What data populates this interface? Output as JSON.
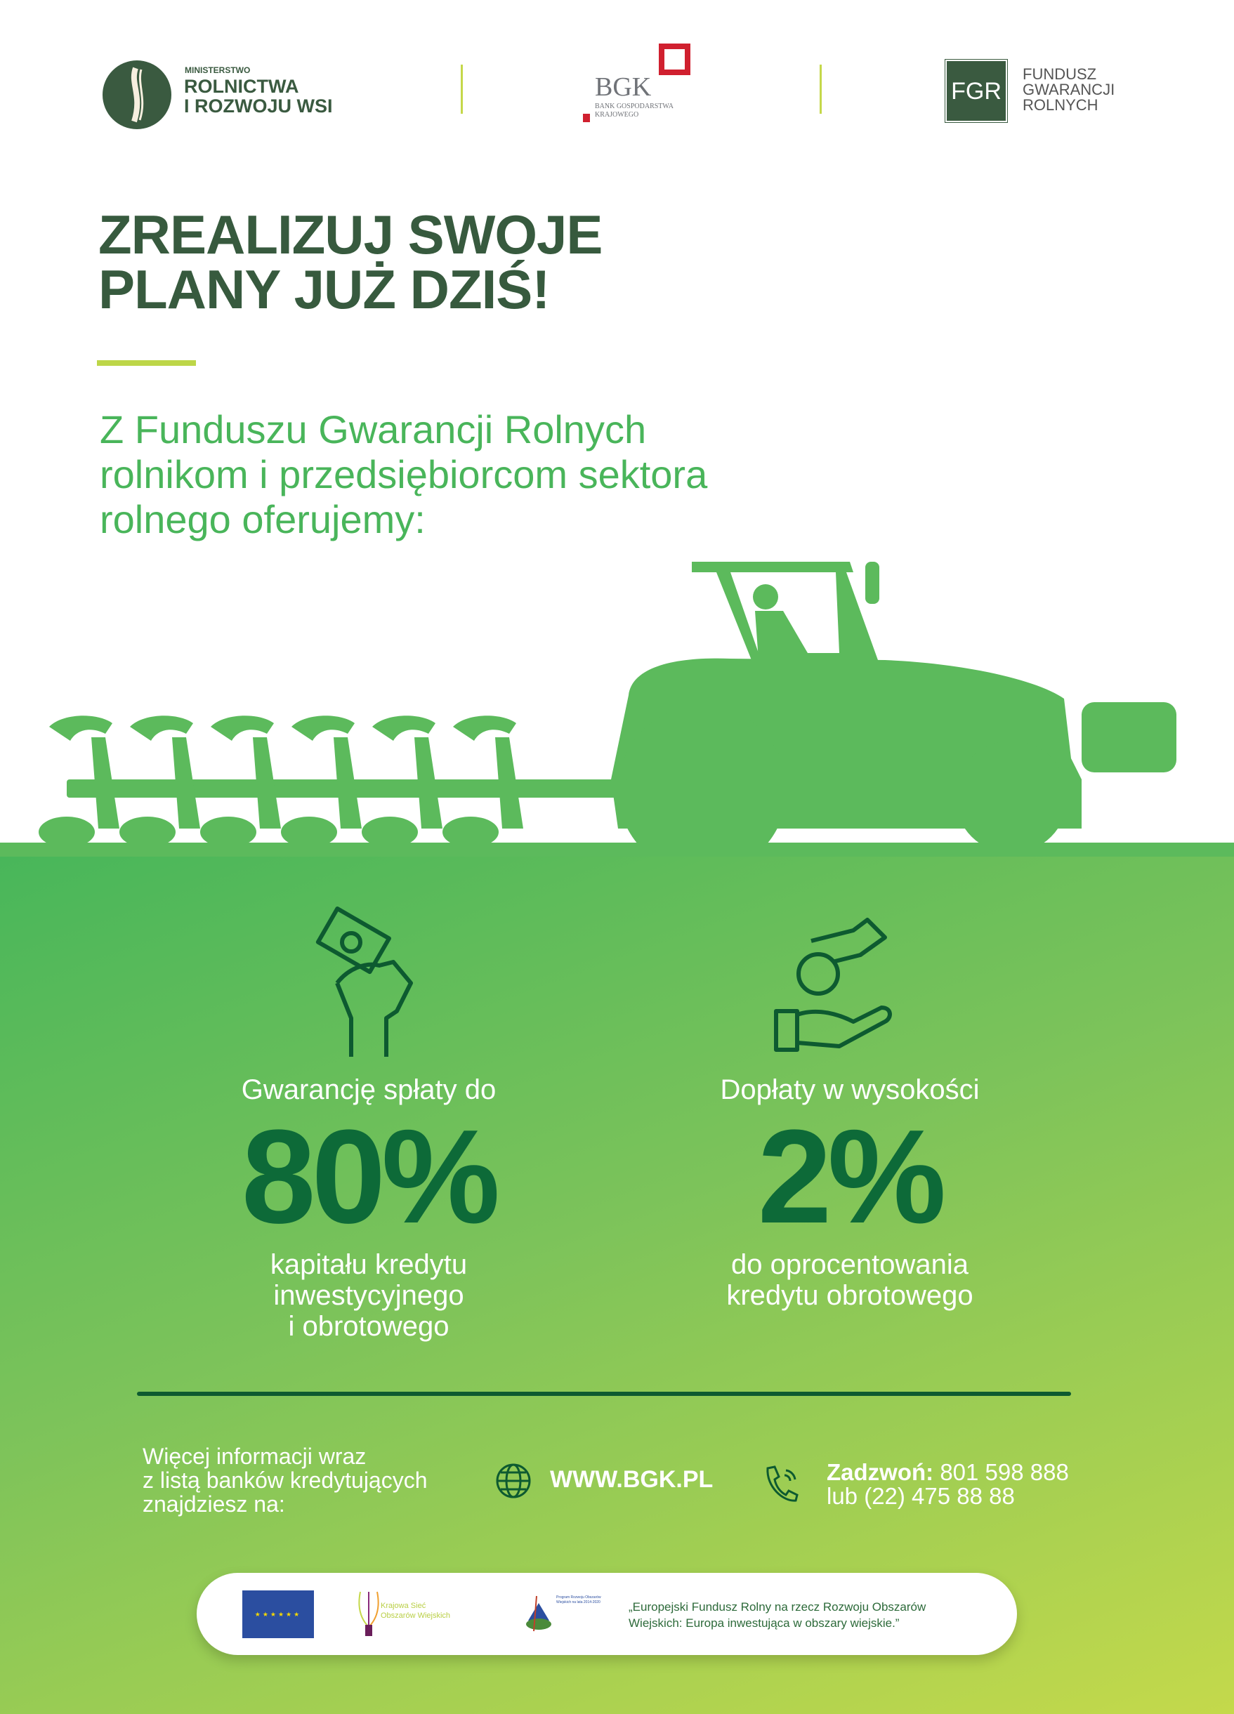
{
  "header": {
    "ministry": {
      "line1": "MINISTERSTWO",
      "line2": "ROLNICTWA",
      "line3": "I ROZWOJU WSI"
    },
    "bgk": {
      "abbr": "BGK",
      "line1": "BANK GOSPODARSTWA",
      "line2": "KRAJOWEGO"
    },
    "fgr": {
      "abbr": "FGR",
      "line1": "FUNDUSZ",
      "line2": "GWARANCJI",
      "line3": "ROLNYCH"
    }
  },
  "title": {
    "line1": "ZREALIZUJ SWOJE",
    "line2": "PLANY JUŻ DZIŚ!"
  },
  "subtitle": {
    "line1": "Z Funduszu Gwarancji Rolnych",
    "line2": "rolnikom i przedsiębiorcom sektora",
    "line3": "rolnego oferujemy:"
  },
  "offers": [
    {
      "icon": "hand-holding-banknote-icon",
      "lead": "Gwarancję spłaty do",
      "value": "80%",
      "desc1": "kapitału kredytu",
      "desc2": "inwestycyjnego",
      "desc3": "i obrotowego"
    },
    {
      "icon": "hand-giving-coin-icon",
      "lead": "Dopłaty w wysokości",
      "value": "2%",
      "desc1": "do oprocentowania",
      "desc2": "kredytu obrotowego"
    }
  ],
  "info": {
    "line1": "Więcej informacji wraz",
    "line2": "z listą banków kredytujących",
    "line3": "znajdziesz na:",
    "website": "WWW.BGK.PL",
    "call_label": "Zadzwoń:",
    "phone1": "801 598 888",
    "phone2": "lub (22) 475 88 88"
  },
  "footer": {
    "ksow_line1": "Krajowa Sieć",
    "ksow_line2": "Obszarów Wiejskich",
    "prow": "Program Rozwoju Obszarów Wiejskich na lata 2014-2020",
    "quote1": "„Europejski Fundusz Rolny na rzecz Rozwoju Obszarów",
    "quote2": "Wiejskich: Europa inwestująca w obszary wiejskie.”"
  },
  "colors": {
    "dark_green": "#375a3e",
    "accent_green": "#49b55a",
    "lime": "#c5d84a",
    "number_green": "#0d6a38",
    "bgk_red": "#d0202f"
  }
}
